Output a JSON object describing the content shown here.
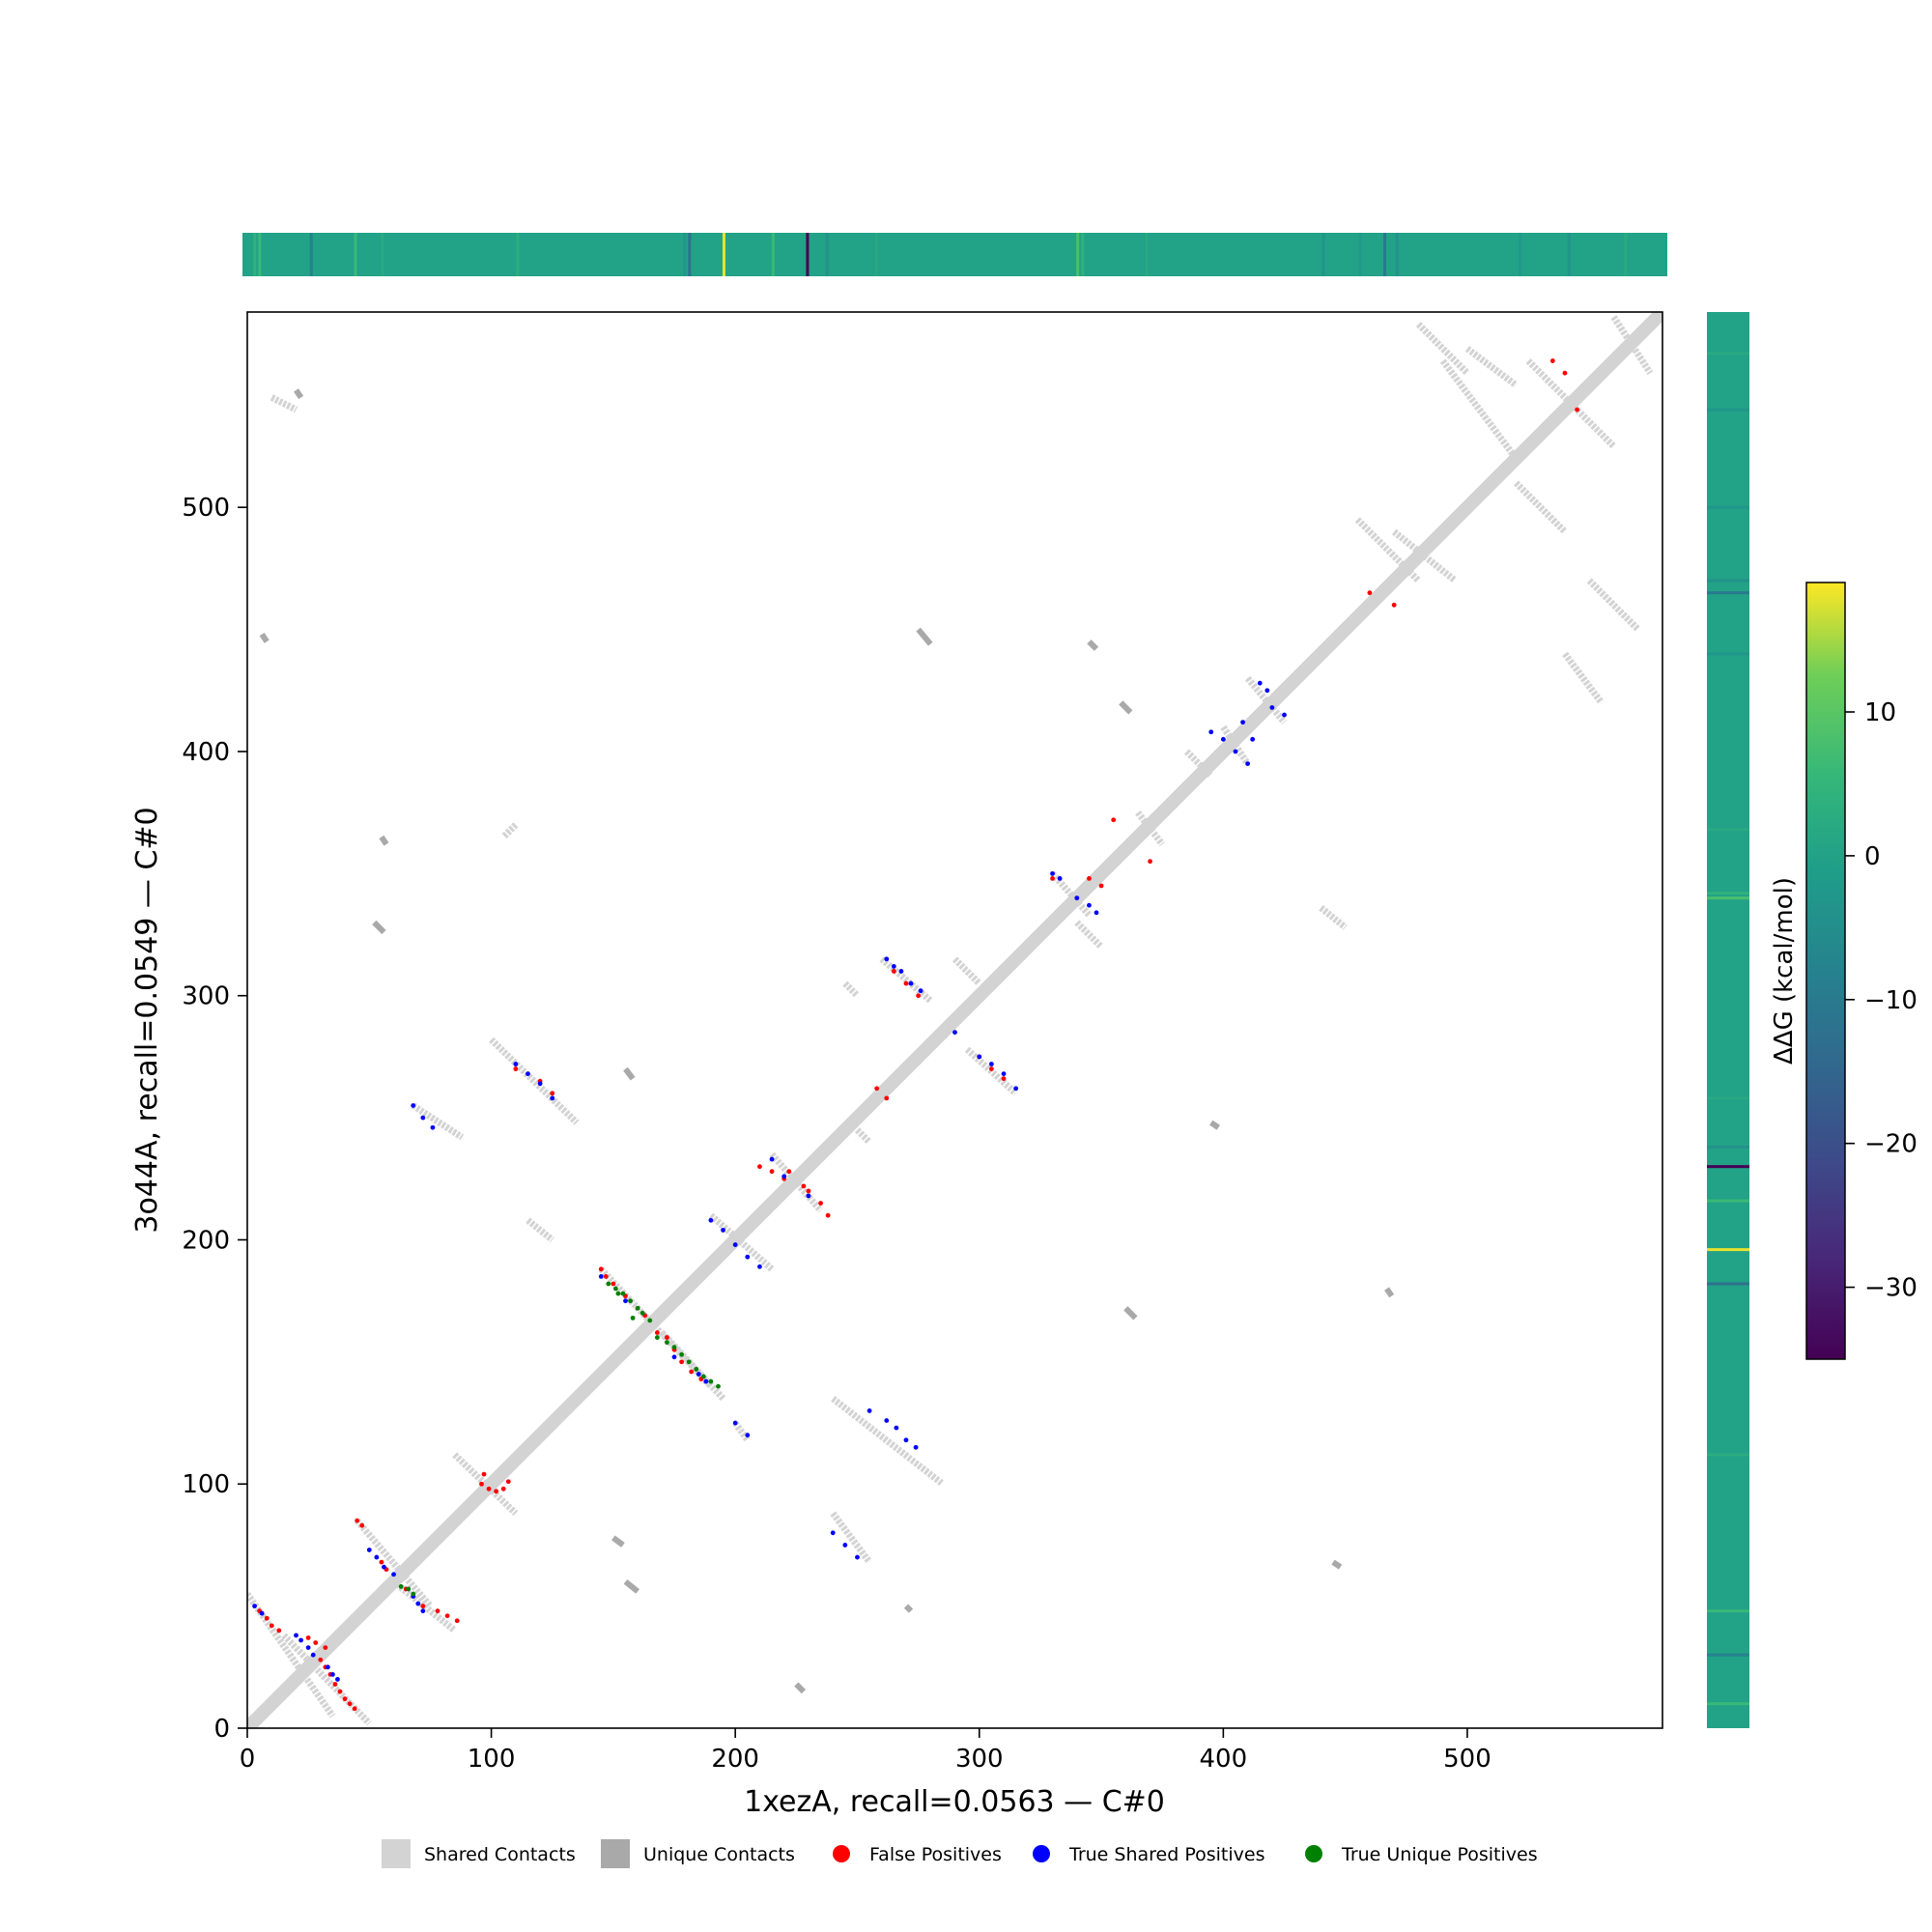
{
  "chart_data": {
    "type": "heatmap",
    "title": "",
    "xlabel": "1xezA, recall=0.0563 — C#0",
    "ylabel": "3o44A, recall=0.0549 — C#0",
    "xlim": [
      0,
      580
    ],
    "ylim": [
      0,
      580
    ],
    "x_ticks": [
      "0",
      "100",
      "200",
      "300",
      "400",
      "500"
    ],
    "y_ticks": [
      "0",
      "100",
      "200",
      "300",
      "400",
      "500"
    ],
    "grid": false,
    "colorbar": {
      "label": "ΔΔG (kcal/mol)",
      "range": [
        -35,
        19
      ],
      "ticks": [
        "10",
        "0",
        "−10",
        "−20",
        "−30"
      ],
      "colormap": "viridis"
    },
    "legend": {
      "placement": "bottom",
      "entries": [
        {
          "label": "Shared Contacts",
          "marker": "square",
          "color": "#d3d3d3"
        },
        {
          "label": "Unique Contacts",
          "marker": "square",
          "color": "#a9a9a9"
        },
        {
          "label": "False Positives",
          "marker": "circle",
          "color": "#ff0000"
        },
        {
          "label": "True Shared Positives",
          "marker": "circle",
          "color": "#0000ff"
        },
        {
          "label": "True Unique Positives",
          "marker": "circle",
          "color": "#008000"
        }
      ]
    },
    "diagonal": {
      "from": 0,
      "to": 580,
      "color": "#d3d3d3"
    },
    "shared_segments": [
      [
        0,
        55,
        35,
        5
      ],
      [
        15,
        38,
        50,
        2
      ],
      [
        45,
        85,
        75,
        50
      ],
      [
        60,
        60,
        85,
        40
      ],
      [
        85,
        112,
        110,
        88
      ],
      [
        100,
        282,
        135,
        248
      ],
      [
        68,
        255,
        88,
        242
      ],
      [
        115,
        208,
        125,
        200
      ],
      [
        145,
        188,
        190,
        140
      ],
      [
        170,
        162,
        195,
        135
      ],
      [
        190,
        210,
        215,
        188
      ],
      [
        215,
        235,
        235,
        212
      ],
      [
        240,
        135,
        285,
        100
      ],
      [
        240,
        88,
        255,
        68
      ],
      [
        200,
        125,
        205,
        118
      ],
      [
        260,
        315,
        280,
        298
      ],
      [
        295,
        278,
        315,
        260
      ],
      [
        330,
        350,
        345,
        333
      ],
      [
        365,
        375,
        375,
        362
      ],
      [
        400,
        410,
        410,
        395
      ],
      [
        410,
        430,
        425,
        412
      ],
      [
        455,
        495,
        480,
        470
      ],
      [
        490,
        560,
        520,
        520
      ],
      [
        525,
        560,
        560,
        525
      ],
      [
        560,
        578,
        575,
        555
      ],
      [
        480,
        575,
        500,
        555
      ],
      [
        470,
        490,
        495,
        470
      ],
      [
        540,
        440,
        555,
        420
      ],
      [
        520,
        510,
        540,
        490
      ],
      [
        385,
        400,
        395,
        390
      ],
      [
        440,
        336,
        450,
        328
      ],
      [
        340,
        330,
        350,
        320
      ],
      [
        290,
        315,
        300,
        305
      ],
      [
        245,
        305,
        250,
        300
      ],
      [
        110,
        370,
        105,
        365
      ],
      [
        10,
        545,
        20,
        540
      ],
      [
        250,
        245,
        255,
        240
      ],
      [
        550,
        470,
        570,
        450
      ],
      [
        500,
        565,
        520,
        550
      ]
    ],
    "unique_segments": [
      [
        20,
        548,
        22,
        545
      ],
      [
        6,
        448,
        8,
        445
      ],
      [
        55,
        365,
        57,
        362
      ],
      [
        52,
        330,
        56,
        326
      ],
      [
        155,
        270,
        158,
        266
      ],
      [
        275,
        450,
        280,
        444
      ],
      [
        345,
        445,
        348,
        442
      ],
      [
        358,
        420,
        362,
        416
      ],
      [
        467,
        180,
        469,
        177
      ],
      [
        360,
        172,
        364,
        168
      ],
      [
        150,
        78,
        154,
        75
      ],
      [
        155,
        60,
        160,
        56
      ],
      [
        270,
        50,
        272,
        48
      ],
      [
        395,
        248,
        398,
        246
      ],
      [
        445,
        68,
        448,
        66
      ],
      [
        225,
        18,
        228,
        15
      ]
    ],
    "false_positives": [
      [
        5,
        48
      ],
      [
        8,
        45
      ],
      [
        10,
        42
      ],
      [
        13,
        40
      ],
      [
        25,
        37
      ],
      [
        28,
        35
      ],
      [
        32,
        33
      ],
      [
        30,
        28
      ],
      [
        32,
        25
      ],
      [
        34,
        22
      ],
      [
        36,
        18
      ],
      [
        38,
        15
      ],
      [
        40,
        12
      ],
      [
        42,
        10
      ],
      [
        44,
        8
      ],
      [
        45,
        85
      ],
      [
        47,
        83
      ],
      [
        55,
        68
      ],
      [
        57,
        65
      ],
      [
        65,
        57
      ],
      [
        72,
        50
      ],
      [
        78,
        48
      ],
      [
        82,
        46
      ],
      [
        86,
        44
      ],
      [
        96,
        100
      ],
      [
        99,
        98
      ],
      [
        102,
        97
      ],
      [
        105,
        98
      ],
      [
        107,
        101
      ],
      [
        97,
        104
      ],
      [
        110,
        270
      ],
      [
        120,
        265
      ],
      [
        125,
        260
      ],
      [
        145,
        188
      ],
      [
        147,
        185
      ],
      [
        150,
        182
      ],
      [
        155,
        177
      ],
      [
        160,
        172
      ],
      [
        163,
        169
      ],
      [
        168,
        162
      ],
      [
        172,
        160
      ],
      [
        175,
        155
      ],
      [
        178,
        150
      ],
      [
        182,
        146
      ],
      [
        186,
        143
      ],
      [
        210,
        230
      ],
      [
        215,
        228
      ],
      [
        220,
        225
      ],
      [
        222,
        228
      ],
      [
        228,
        222
      ],
      [
        230,
        220
      ],
      [
        235,
        215
      ],
      [
        238,
        210
      ],
      [
        258,
        262
      ],
      [
        262,
        258
      ],
      [
        265,
        310
      ],
      [
        270,
        305
      ],
      [
        275,
        300
      ],
      [
        300,
        275
      ],
      [
        305,
        270
      ],
      [
        310,
        266
      ],
      [
        345,
        348
      ],
      [
        350,
        345
      ],
      [
        355,
        372
      ],
      [
        370,
        355
      ],
      [
        460,
        465
      ],
      [
        470,
        460
      ],
      [
        535,
        560
      ],
      [
        540,
        555
      ],
      [
        545,
        540
      ],
      [
        330,
        348
      ]
    ],
    "true_shared_positives": [
      [
        3,
        50
      ],
      [
        6,
        47
      ],
      [
        20,
        38
      ],
      [
        22,
        36
      ],
      [
        25,
        33
      ],
      [
        27,
        30
      ],
      [
        33,
        25
      ],
      [
        35,
        22
      ],
      [
        37,
        20
      ],
      [
        50,
        73
      ],
      [
        53,
        70
      ],
      [
        56,
        66
      ],
      [
        60,
        63
      ],
      [
        66,
        57
      ],
      [
        68,
        54
      ],
      [
        70,
        51
      ],
      [
        72,
        48
      ],
      [
        68,
        255
      ],
      [
        72,
        250
      ],
      [
        76,
        246
      ],
      [
        110,
        272
      ],
      [
        115,
        268
      ],
      [
        120,
        264
      ],
      [
        125,
        258
      ],
      [
        145,
        185
      ],
      [
        155,
        175
      ],
      [
        175,
        152
      ],
      [
        185,
        145
      ],
      [
        188,
        142
      ],
      [
        190,
        208
      ],
      [
        195,
        204
      ],
      [
        200,
        198
      ],
      [
        205,
        193
      ],
      [
        210,
        189
      ],
      [
        215,
        233
      ],
      [
        220,
        226
      ],
      [
        230,
        218
      ],
      [
        200,
        125
      ],
      [
        205,
        120
      ],
      [
        255,
        130
      ],
      [
        262,
        126
      ],
      [
        266,
        123
      ],
      [
        270,
        118
      ],
      [
        274,
        115
      ],
      [
        240,
        80
      ],
      [
        245,
        75
      ],
      [
        250,
        70
      ],
      [
        262,
        315
      ],
      [
        265,
        312
      ],
      [
        268,
        310
      ],
      [
        272,
        305
      ],
      [
        276,
        302
      ],
      [
        290,
        285
      ],
      [
        300,
        275
      ],
      [
        305,
        272
      ],
      [
        310,
        268
      ],
      [
        315,
        262
      ],
      [
        330,
        350
      ],
      [
        333,
        348
      ],
      [
        340,
        340
      ],
      [
        345,
        337
      ],
      [
        348,
        334
      ],
      [
        395,
        408
      ],
      [
        400,
        405
      ],
      [
        405,
        400
      ],
      [
        410,
        395
      ],
      [
        408,
        412
      ],
      [
        412,
        405
      ],
      [
        415,
        428
      ],
      [
        418,
        425
      ],
      [
        420,
        418
      ],
      [
        425,
        415
      ]
    ],
    "true_unique_positives": [
      [
        63,
        58
      ],
      [
        66,
        57
      ],
      [
        68,
        55
      ],
      [
        148,
        182
      ],
      [
        151,
        180
      ],
      [
        154,
        178
      ],
      [
        157,
        175
      ],
      [
        160,
        172
      ],
      [
        162,
        170
      ],
      [
        165,
        167
      ],
      [
        168,
        160
      ],
      [
        172,
        158
      ],
      [
        175,
        156
      ],
      [
        178,
        153
      ],
      [
        181,
        150
      ],
      [
        184,
        147
      ],
      [
        187,
        144
      ],
      [
        190,
        142
      ],
      [
        193,
        140
      ],
      [
        158,
        168
      ],
      [
        152,
        178
      ]
    ],
    "top_track": {
      "baseline": 0,
      "values": [
        [
          5,
          4
        ],
        [
          7,
          6
        ],
        [
          28,
          -8
        ],
        [
          46,
          6
        ],
        [
          57,
          2
        ],
        [
          112,
          3
        ],
        [
          180,
          -3
        ],
        [
          182,
          -12
        ],
        [
          196,
          18
        ],
        [
          216,
          6
        ],
        [
          230,
          -35
        ],
        [
          238,
          -4
        ],
        [
          258,
          2
        ],
        [
          340,
          8
        ],
        [
          342,
          4
        ],
        [
          368,
          2
        ],
        [
          440,
          -3
        ],
        [
          455,
          -2
        ],
        [
          465,
          -10
        ],
        [
          470,
          -4
        ],
        [
          520,
          -2
        ],
        [
          540,
          -3
        ],
        [
          563,
          2
        ]
      ]
    },
    "right_track": {
      "baseline": 0,
      "values": [
        [
          10,
          6
        ],
        [
          30,
          -8
        ],
        [
          48,
          6
        ],
        [
          112,
          3
        ],
        [
          182,
          -12
        ],
        [
          196,
          18
        ],
        [
          216,
          6
        ],
        [
          230,
          -35
        ],
        [
          238,
          -4
        ],
        [
          258,
          2
        ],
        [
          340,
          8
        ],
        [
          342,
          4
        ],
        [
          368,
          2
        ],
        [
          440,
          -3
        ],
        [
          465,
          -10
        ],
        [
          470,
          -4
        ],
        [
          500,
          -3
        ],
        [
          540,
          -3
        ],
        [
          563,
          2
        ]
      ]
    }
  }
}
